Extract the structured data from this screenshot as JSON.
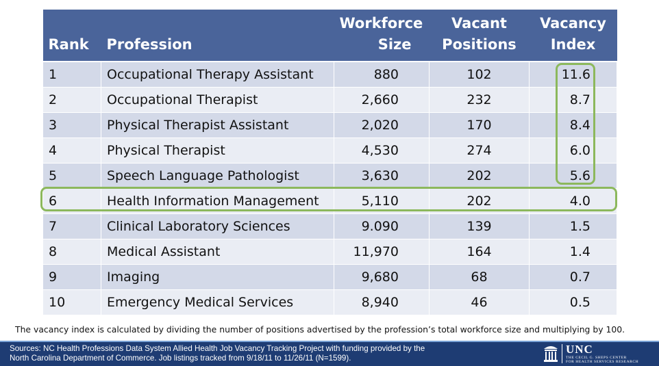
{
  "chart_data": {
    "type": "table",
    "columns": {
      "rank": "Rank",
      "profession": "Profession",
      "workforce_line1": "Workforce",
      "workforce_line2": "Size",
      "vacant_line1": "Vacant",
      "vacant_line2": "Positions",
      "index_line1": "Vacancy",
      "index_line2": "Index"
    },
    "rows": [
      {
        "rank": "1",
        "profession": "Occupational Therapy Assistant",
        "workforce": "880",
        "vacant": "102",
        "index": "11.6"
      },
      {
        "rank": "2",
        "profession": "Occupational Therapist",
        "workforce": "2,660",
        "vacant": "232",
        "index": "8.7"
      },
      {
        "rank": "3",
        "profession": "Physical Therapist Assistant",
        "workforce": "2,020",
        "vacant": "170",
        "index": "8.4"
      },
      {
        "rank": "4",
        "profession": "Physical Therapist",
        "workforce": "4,530",
        "vacant": "274",
        "index": "6.0"
      },
      {
        "rank": "5",
        "profession": "Speech Language Pathologist",
        "workforce": "3,630",
        "vacant": "202",
        "index": "5.6"
      },
      {
        "rank": "6",
        "profession": "Health Information Management",
        "workforce": "5,110",
        "vacant": "202",
        "index": "4.0"
      },
      {
        "rank": "7",
        "profession": "Clinical Laboratory Sciences",
        "workforce": "9.090",
        "vacant": "139",
        "index": "1.5"
      },
      {
        "rank": "8",
        "profession": "Medical Assistant",
        "workforce": "11,970",
        "vacant": "164",
        "index": "1.4"
      },
      {
        "rank": "9",
        "profession": "Imaging",
        "workforce": "9,680",
        "vacant": "68",
        "index": "0.7"
      },
      {
        "rank": "10",
        "profession": "Emergency Medical Services",
        "workforce": "8,940",
        "vacant": "46",
        "index": "0.5"
      }
    ],
    "highlights": {
      "column_rows": [
        "1",
        "2",
        "3",
        "4",
        "5"
      ],
      "row": "6",
      "color": "#8cb85c"
    }
  },
  "note": "The vacancy index is calculated by dividing the number of positions advertised by the profession’s total workforce size and multiplying by 100.",
  "footer": {
    "sources_line1": "Sources: NC Health Professions Data System Allied Health Job Vacancy Tracking Project with funding provided by the",
    "sources_line2": "North Carolina Department of Commerce. Job listings tracked from 9/18/11 to 11/26/11 (N=1599).",
    "logo_text": "UNC",
    "logo_sub_line1": "THE CECIL G. SHEPS CENTER",
    "logo_sub_line2": "FOR HEALTH SERVICES RESEARCH"
  },
  "colors": {
    "header_bg": "#4a649a",
    "row_odd": "#d3d9e8",
    "row_even": "#eaedf4",
    "footer_bg": "#1e3c73"
  }
}
